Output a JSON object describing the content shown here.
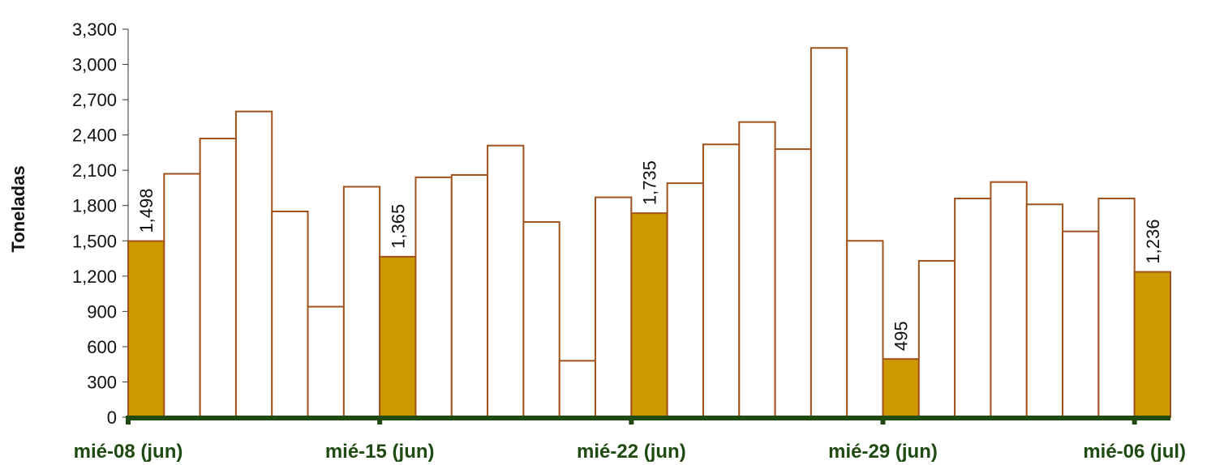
{
  "chart_data": {
    "type": "bar",
    "ylabel": "Toneladas",
    "xlabel": "",
    "title": "",
    "ylim": [
      0,
      3300
    ],
    "yticks": [
      0,
      300,
      600,
      900,
      1200,
      1500,
      1800,
      2100,
      2400,
      2700,
      3000,
      3300
    ],
    "ytick_labels": [
      "0",
      "300",
      "600",
      "900",
      "1,200",
      "1,500",
      "1,800",
      "2,100",
      "2,400",
      "2,700",
      "3,000",
      "3,300"
    ],
    "x_tick_labels": [
      {
        "index": 0,
        "label": "mié-08 (jun)"
      },
      {
        "index": 7,
        "label": "mié-15 (jun)"
      },
      {
        "index": 14,
        "label": "mié-22 (jun)"
      },
      {
        "index": 21,
        "label": "mié-29 (jun)"
      },
      {
        "index": 28,
        "label": "mié-06 (jul)"
      }
    ],
    "values": [
      1498,
      2070,
      2370,
      2600,
      1750,
      940,
      1960,
      1365,
      2040,
      2060,
      2310,
      1660,
      480,
      1870,
      1735,
      1990,
      2320,
      2510,
      2280,
      3140,
      1500,
      495,
      1330,
      1860,
      2000,
      1810,
      1580,
      1860,
      1236
    ],
    "highlighted_indices": [
      0,
      7,
      14,
      21,
      28
    ],
    "data_labels": [
      {
        "index": 0,
        "text": "1,498"
      },
      {
        "index": 7,
        "text": "1,365"
      },
      {
        "index": 14,
        "text": "1,735"
      },
      {
        "index": 21,
        "text": "495"
      },
      {
        "index": 28,
        "text": "1,236"
      }
    ],
    "colors": {
      "highlight_fill": "#cc9900",
      "default_fill": "#ffffff",
      "bar_stroke": "#a0521a",
      "axis": "#1f4a12",
      "tick_text": "#1f4a12"
    },
    "grid": false,
    "legend": "none"
  }
}
